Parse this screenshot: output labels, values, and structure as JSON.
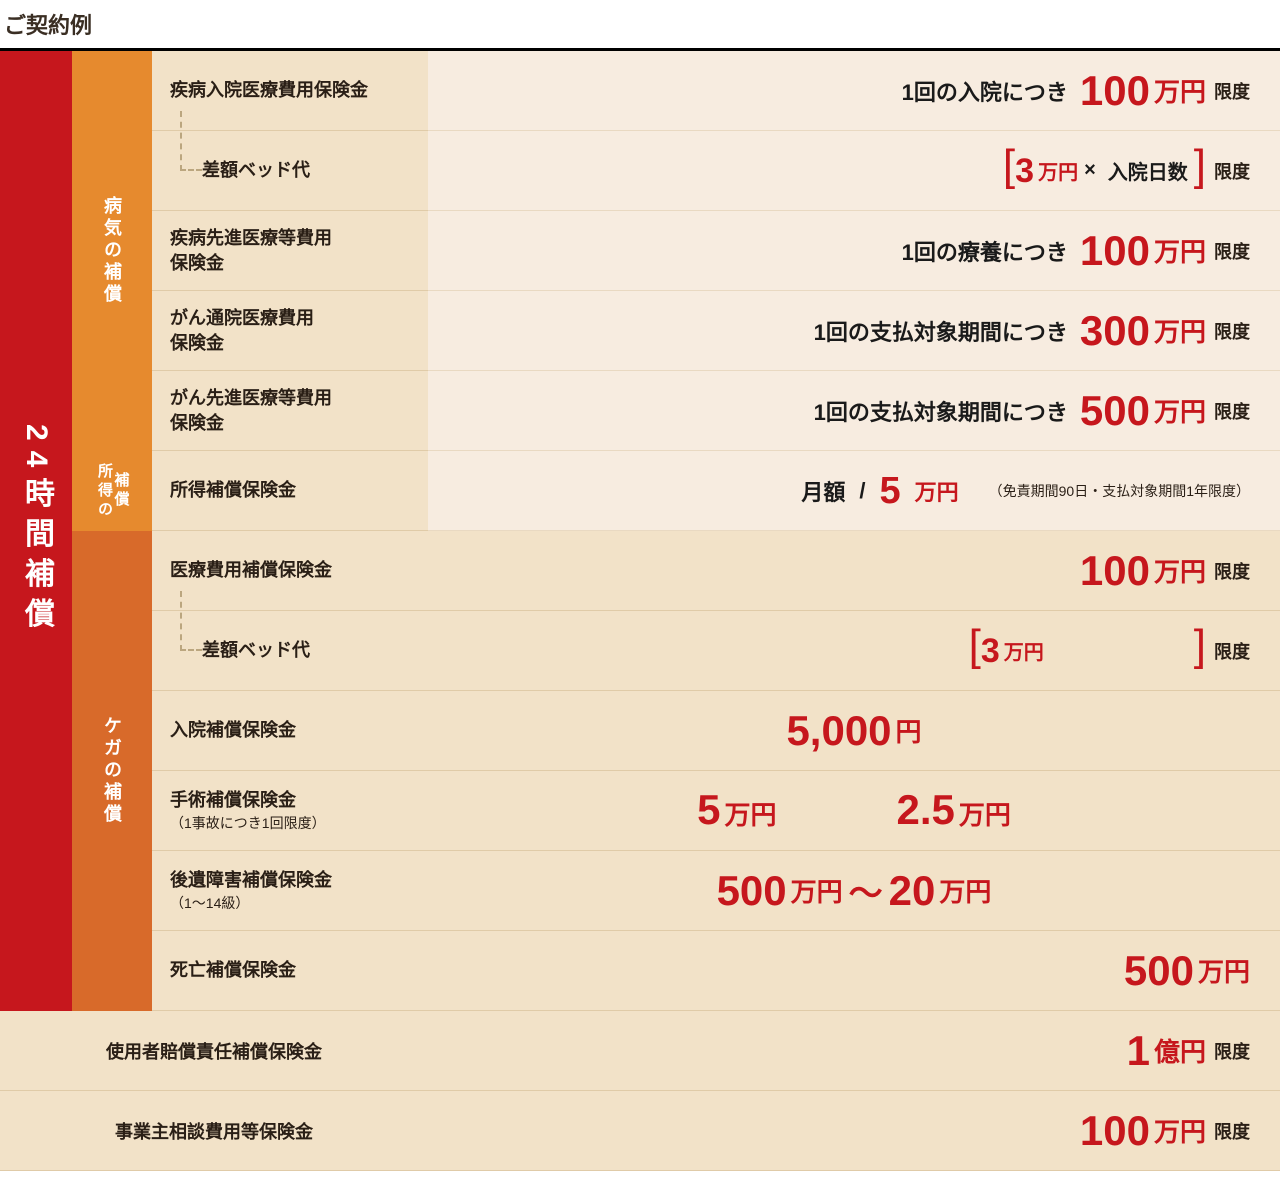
{
  "title": "ご契約例",
  "leftBar": "24時間補償",
  "sections": {
    "sick": "病気の補償",
    "income": "所得の補償",
    "injury": "ケガの補償"
  },
  "rows": {
    "r1": {
      "label": "疾病入院医療費用保険金",
      "prefix": "1回の入院につき",
      "num": "100",
      "unit": "万円",
      "limit": "限度"
    },
    "r2": {
      "label": "差額ベッド代",
      "bL": "[",
      "num": "3",
      "unit": "万円",
      "mult": "×",
      "text": "入院日数",
      "bR": "]",
      "limit": "限度"
    },
    "r3": {
      "label": "疾病先進医療等費用\n保険金",
      "prefix": "1回の療養につき",
      "num": "100",
      "unit": "万円",
      "limit": "限度"
    },
    "r4": {
      "label": "がん通院医療費用\n保険金",
      "prefix": "1回の支払対象期間につき",
      "num": "300",
      "unit": "万円",
      "limit": "限度"
    },
    "r5": {
      "label": "がん先進医療等費用\n保険金",
      "prefix": "1回の支払対象期間につき",
      "num": "500",
      "unit": "万円",
      "limit": "限度"
    },
    "r6": {
      "label": "所得補償保険金",
      "monthly": "月額",
      "slash": "/",
      "num": "5",
      "unit": "万円",
      "note": "（免責期間90日・支払対象期間1年限度）"
    },
    "r7": {
      "label": "医療費用補償保険金",
      "num": "100",
      "unit": "万円",
      "limit": "限度"
    },
    "r8": {
      "label": "差額ベッド代",
      "bL": "[",
      "num": "3",
      "unit": "万円",
      "bR": "]",
      "limit": "限度"
    },
    "r9": {
      "label": "入院補償保険金",
      "num": "5,000",
      "unit": "円"
    },
    "r10": {
      "label": "手術補償保険金",
      "note": "（1事故につき1回限度）",
      "numA": "5",
      "unitA": "万円",
      "numB": "2.5",
      "unitB": "万円"
    },
    "r11": {
      "label": "後遺障害補償保険金",
      "note": "（1〜14級）",
      "numA": "500",
      "unitA": "万円",
      "sep": "〜",
      "numB": "20",
      "unitB": "万円"
    },
    "r12": {
      "label": "死亡補償保険金",
      "num": "500",
      "unit": "万円"
    }
  },
  "bottom": {
    "b1": {
      "label": "使用者賠償責任補償保険金",
      "num": "1",
      "unit": "億円",
      "limit": "限度"
    },
    "b2": {
      "label": "事業主相談費用等保険金",
      "num": "100",
      "unit": "万円",
      "limit": "限度"
    }
  },
  "colors": {
    "red": "#c6171d",
    "orange1": "#e68a2e",
    "orange2": "#d86a2a",
    "cream1": "#f7ece0",
    "cream2": "#f2e2c8"
  }
}
